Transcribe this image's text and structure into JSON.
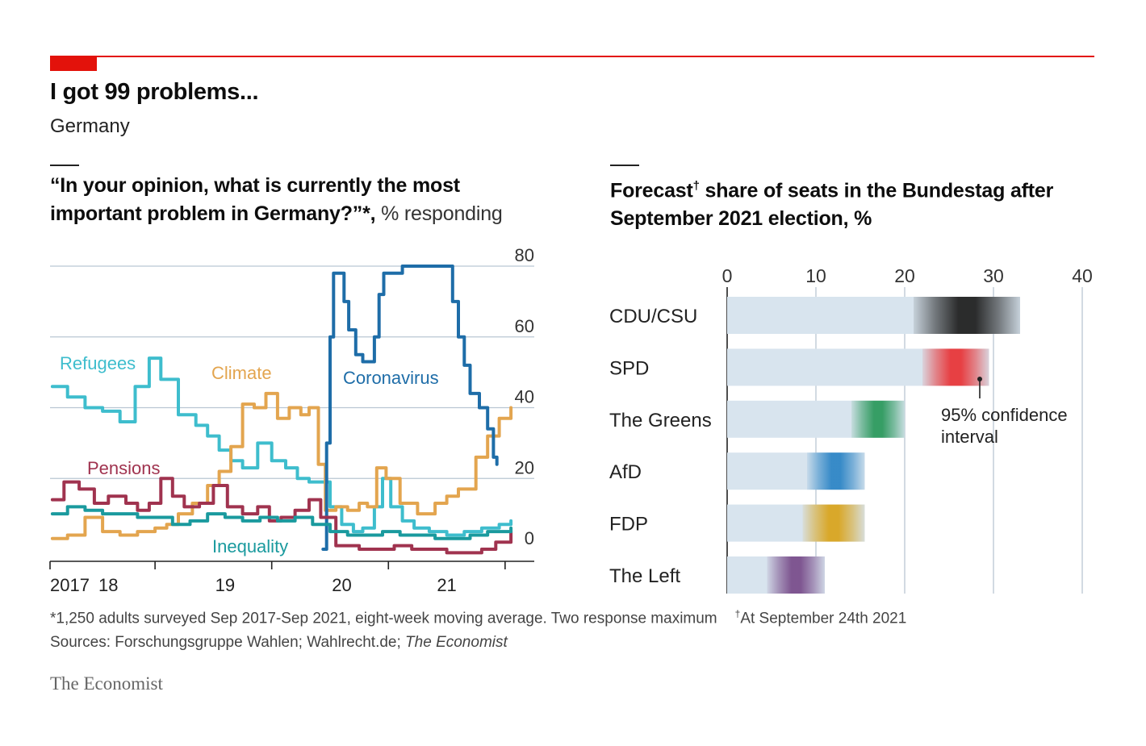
{
  "header": {
    "title": "I got 99 problems...",
    "subtitle": "Germany"
  },
  "left_panel": {
    "title_line1": "“In your opinion, what is currently the most",
    "title_line2_bold": "important problem in Germany?”*,",
    "title_line2_light": " % responding"
  },
  "right_panel": {
    "title_word": "Forecast",
    "title_dagger": "†",
    "title_rest": " share of seats in the Bundestag after",
    "title_line2": "September 2021 election, %"
  },
  "footer": {
    "footnote": "*1,250 adults surveyed Sep 2017-Sep 2021, eight-week moving average. Two response maximum",
    "footnote2_dagger": "†",
    "footnote2": "At September 24th 2021",
    "sources_prefix": "Sources: Forschungsgruppe Wahlen; Wahlrecht.de; ",
    "sources_italic": "The Economist",
    "brand": "The Economist"
  },
  "chart_data": [
    {
      "type": "line",
      "title": "“In your opinion, what is currently the most important problem in Germany?”*, % responding",
      "ylabel": "% responding",
      "ylim": [
        0,
        80
      ],
      "yticks": [
        0,
        20,
        40,
        60,
        80
      ],
      "xlim": [
        2017.6,
        2021.75
      ],
      "xticks": [
        {
          "label": "2017",
          "value": 2017.6
        },
        {
          "label": "18",
          "value": 2018.0
        },
        {
          "label": "19",
          "value": 2019.0
        },
        {
          "label": "20",
          "value": 2020.0
        },
        {
          "label": "21",
          "value": 2021.0
        }
      ],
      "series": [
        {
          "name": "Refugees",
          "color": "#3ebdcd",
          "x": [
            2017.62,
            2017.75,
            2017.9,
            2018.05,
            2018.2,
            2018.33,
            2018.45,
            2018.55,
            2018.7,
            2018.85,
            2018.95,
            2019.05,
            2019.15,
            2019.25,
            2019.38,
            2019.5,
            2019.62,
            2019.72,
            2019.82,
            2019.92,
            2020.0,
            2020.1,
            2020.2,
            2020.28,
            2020.38,
            2020.45,
            2020.52,
            2020.62,
            2020.72,
            2020.85,
            2021.0,
            2021.15,
            2021.3,
            2021.45,
            2021.55
          ],
          "y": [
            46,
            43,
            40,
            39,
            36,
            46,
            54,
            48,
            38,
            35,
            32,
            28,
            25,
            23,
            30,
            25,
            23,
            20,
            19,
            19,
            12,
            7,
            5,
            6,
            12,
            20,
            12,
            8,
            6,
            5,
            4,
            5,
            6,
            7,
            8
          ]
        },
        {
          "name": "Climate",
          "color": "#e3a54f",
          "x": [
            2017.62,
            2017.75,
            2017.9,
            2018.05,
            2018.2,
            2018.35,
            2018.5,
            2018.6,
            2018.7,
            2018.82,
            2018.95,
            2019.05,
            2019.15,
            2019.25,
            2019.35,
            2019.45,
            2019.55,
            2019.65,
            2019.75,
            2019.82,
            2019.9,
            2019.96,
            2020.05,
            2020.15,
            2020.25,
            2020.32,
            2020.4,
            2020.48,
            2020.6,
            2020.75,
            2020.9,
            2021.0,
            2021.1,
            2021.25,
            2021.35,
            2021.45,
            2021.55
          ],
          "y": [
            3,
            4,
            9,
            5,
            4,
            5,
            6,
            7,
            10,
            13,
            18,
            22,
            29,
            41,
            40,
            44,
            37,
            40,
            38,
            40,
            24,
            11,
            12,
            11,
            13,
            12,
            23,
            20,
            13,
            10,
            13,
            15,
            17,
            26,
            32,
            37,
            40
          ]
        },
        {
          "name": "Coronavirus",
          "color": "#1e6da8",
          "x": [
            2019.94,
            2019.97,
            2020.0,
            2020.03,
            2020.08,
            2020.12,
            2020.16,
            2020.22,
            2020.28,
            2020.33,
            2020.38,
            2020.42,
            2020.46,
            2020.52,
            2020.62,
            2020.72,
            2020.85,
            2020.95,
            2021.0,
            2021.05,
            2021.1,
            2021.15,
            2021.2,
            2021.28,
            2021.35,
            2021.4,
            2021.43
          ],
          "y": [
            0,
            30,
            60,
            78,
            78,
            70,
            62,
            55,
            53,
            53,
            60,
            72,
            78,
            78,
            80,
            80,
            80,
            80,
            80,
            70,
            60,
            52,
            44,
            40,
            34,
            26,
            24
          ]
        },
        {
          "name": "Pensions",
          "color": "#a0334f",
          "x": [
            2017.62,
            2017.72,
            2017.85,
            2017.98,
            2018.1,
            2018.25,
            2018.35,
            2018.45,
            2018.55,
            2018.65,
            2018.75,
            2018.88,
            2019.0,
            2019.12,
            2019.25,
            2019.38,
            2019.48,
            2019.58,
            2019.7,
            2019.82,
            2019.92,
            2020.05,
            2020.25,
            2020.4,
            2020.55,
            2020.7,
            2020.85,
            2021.0,
            2021.15,
            2021.3,
            2021.42,
            2021.55
          ],
          "y": [
            14,
            19,
            17,
            13,
            15,
            13,
            11,
            13,
            20,
            15,
            12,
            13,
            18,
            12,
            10,
            12,
            8,
            9,
            11,
            14,
            9,
            1,
            0,
            0,
            1,
            0,
            0,
            -1,
            -1,
            0,
            2,
            5
          ]
        },
        {
          "name": "Inequality",
          "color": "#1a9a9e",
          "x": [
            2017.62,
            2017.75,
            2017.9,
            2018.05,
            2018.2,
            2018.35,
            2018.5,
            2018.65,
            2018.8,
            2018.95,
            2019.1,
            2019.25,
            2019.4,
            2019.55,
            2019.7,
            2019.85,
            2020.0,
            2020.15,
            2020.3,
            2020.45,
            2020.6,
            2020.75,
            2020.9,
            2021.05,
            2021.2,
            2021.35,
            2021.55
          ],
          "y": [
            10,
            12,
            11,
            10,
            10,
            9,
            9,
            7,
            8,
            10,
            9,
            8,
            9,
            8,
            9,
            7,
            5,
            4,
            4,
            5,
            4,
            4,
            3,
            3,
            4,
            5,
            6
          ]
        }
      ],
      "annotations": [
        "Refugees",
        "Climate",
        "Coronavirus",
        "Pensions",
        "Inequality"
      ]
    },
    {
      "type": "bar",
      "subtype": "range-with-confidence-interval",
      "title": "Forecast† share of seats in the Bundestag after September 2021 election, %",
      "xlim": [
        0,
        40
      ],
      "xticks": [
        0,
        10,
        20,
        30,
        40
      ],
      "categories": [
        "CDU/CSU",
        "SPD",
        "The Greens",
        "AfD",
        "FDP",
        "The Left"
      ],
      "ci_low": [
        21.0,
        22.0,
        14.0,
        9.0,
        8.5,
        4.5
      ],
      "ci_high": [
        33.0,
        29.5,
        20.0,
        15.5,
        15.5,
        11.0
      ],
      "colors": [
        "#222222",
        "#e8373a",
        "#2e9a5e",
        "#2f86c6",
        "#d9a520",
        "#7a4f8c"
      ],
      "annotation": "95% confidence interval",
      "annotation_line1": "95% confidence",
      "annotation_line2": "interval"
    }
  ]
}
